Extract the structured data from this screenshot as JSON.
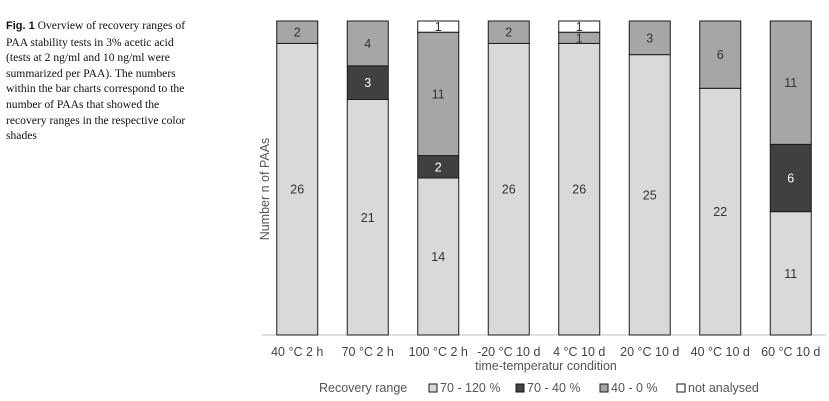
{
  "caption": {
    "label": "Fig. 1",
    "text": "Overview of recovery ranges of PAA stability tests in 3% acetic acid (tests at 2 ng/ml and 10 ng/ml were summarized per PAA). The numbers within the bar charts correspond to the number of PAAs that showed the recovery ranges in the respective color shades"
  },
  "chart_data": {
    "type": "bar",
    "stacked": true,
    "categories": [
      "40 °C 2 h",
      "70 °C 2 h",
      "100 °C 2 h",
      "-20 °C 10 d",
      "4 °C 10 d",
      "20 °C 10 d",
      "40 °C 10 d",
      "60 °C 10 d"
    ],
    "series": [
      {
        "name": "70 - 120 %",
        "values": [
          26,
          21,
          14,
          26,
          26,
          25,
          22,
          11
        ],
        "color": "#d9d9d9",
        "label_color": "#333333"
      },
      {
        "name": "70 - 40 %",
        "values": [
          0,
          3,
          2,
          0,
          0,
          0,
          0,
          6
        ],
        "color": "#404040",
        "label_color": "#ffffff"
      },
      {
        "name": "40 - 0 %",
        "values": [
          2,
          4,
          11,
          2,
          1,
          3,
          6,
          11
        ],
        "color": "#a6a6a6",
        "label_color": "#333333"
      },
      {
        "name": "not analysed",
        "values": [
          0,
          0,
          1,
          0,
          1,
          0,
          0,
          0
        ],
        "color": "#ffffff",
        "label_color": "#333333"
      }
    ],
    "xlabel": "time-temperatur condition",
    "ylabel": "Number n of PAAs",
    "ylim": [
      0,
      28
    ],
    "grid": false,
    "legend_title": "Recovery range",
    "legend_position": "bottom"
  }
}
